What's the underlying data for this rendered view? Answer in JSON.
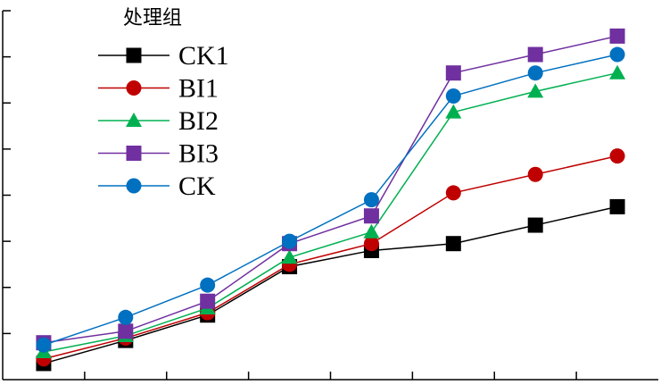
{
  "legend": {
    "title": "处理组"
  },
  "chart_data": {
    "type": "line",
    "title": "",
    "xlabel": "",
    "ylabel": "",
    "x": [
      1,
      2,
      3,
      4,
      5,
      6,
      7,
      8
    ],
    "xlim": [
      0.5,
      8.5
    ],
    "ylim": [
      0,
      8
    ],
    "grid": false,
    "legend_position": "top-left",
    "series": [
      {
        "name": "CK1",
        "color": "#000000",
        "marker": "square",
        "values": [
          0.35,
          0.85,
          1.4,
          2.45,
          2.8,
          2.95,
          3.35,
          3.75
        ]
      },
      {
        "name": "BI1",
        "color": "#c00000",
        "marker": "circle",
        "values": [
          0.45,
          0.9,
          1.45,
          2.5,
          2.95,
          4.05,
          4.45,
          4.85
        ]
      },
      {
        "name": "BI2",
        "color": "#00b050",
        "marker": "triangle",
        "values": [
          0.6,
          0.95,
          1.55,
          2.65,
          3.2,
          5.8,
          6.25,
          6.65
        ]
      },
      {
        "name": "BI3",
        "color": "#7030a0",
        "marker": "square",
        "values": [
          0.8,
          1.05,
          1.7,
          2.95,
          3.55,
          6.65,
          7.05,
          7.45
        ]
      },
      {
        "name": "CK",
        "color": "#0070c0",
        "marker": "circle",
        "values": [
          0.75,
          1.35,
          2.05,
          3.0,
          3.9,
          6.15,
          6.65,
          7.05
        ]
      }
    ]
  }
}
